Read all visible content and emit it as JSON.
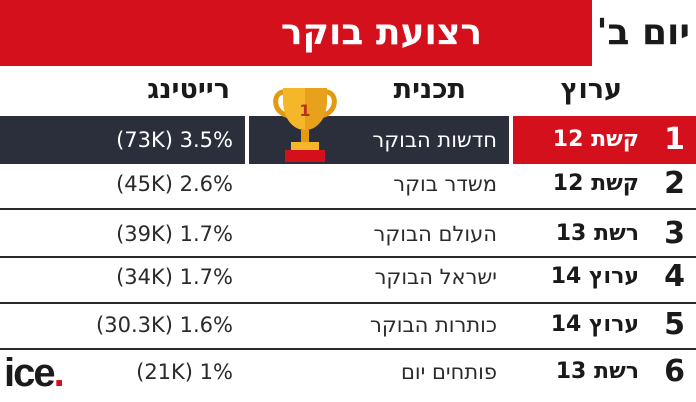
{
  "header": {
    "title": "רצועת בוקר",
    "day": "יום ב'"
  },
  "columns": {
    "channel": "ערוץ",
    "program": "תכנית",
    "rating": "רייטינג"
  },
  "rows": [
    {
      "rank": "1",
      "channel": "קשת 12",
      "program": "חדשות הבוקר",
      "rating": "(73K) 3.5%"
    },
    {
      "rank": "2",
      "channel": "קשת 12",
      "program": "משדר בוקר",
      "rating": "(45K) 2.6%"
    },
    {
      "rank": "3",
      "channel": "רשת 13",
      "program": "העולם הבוקר",
      "rating": "(39K) 1.7%"
    },
    {
      "rank": "4",
      "channel": "ערוץ 14",
      "program": "ישראל הבוקר",
      "rating": "(34K) 1.7%"
    },
    {
      "rank": "5",
      "channel": "ערוץ 14",
      "program": "כותרות הבוקר",
      "rating": "(30.3K) 1.6%"
    },
    {
      "rank": "6",
      "channel": "רשת 13",
      "program": "פותחים יום",
      "rating": "(21K) 1%"
    }
  ],
  "trophy": {
    "number": "1",
    "icon": "trophy-icon"
  },
  "logo": {
    "text": "ice",
    "dot": "."
  },
  "colors": {
    "accent": "#d4101c",
    "dark_row": "#2b2f3b",
    "gold": "#f5b62a"
  }
}
